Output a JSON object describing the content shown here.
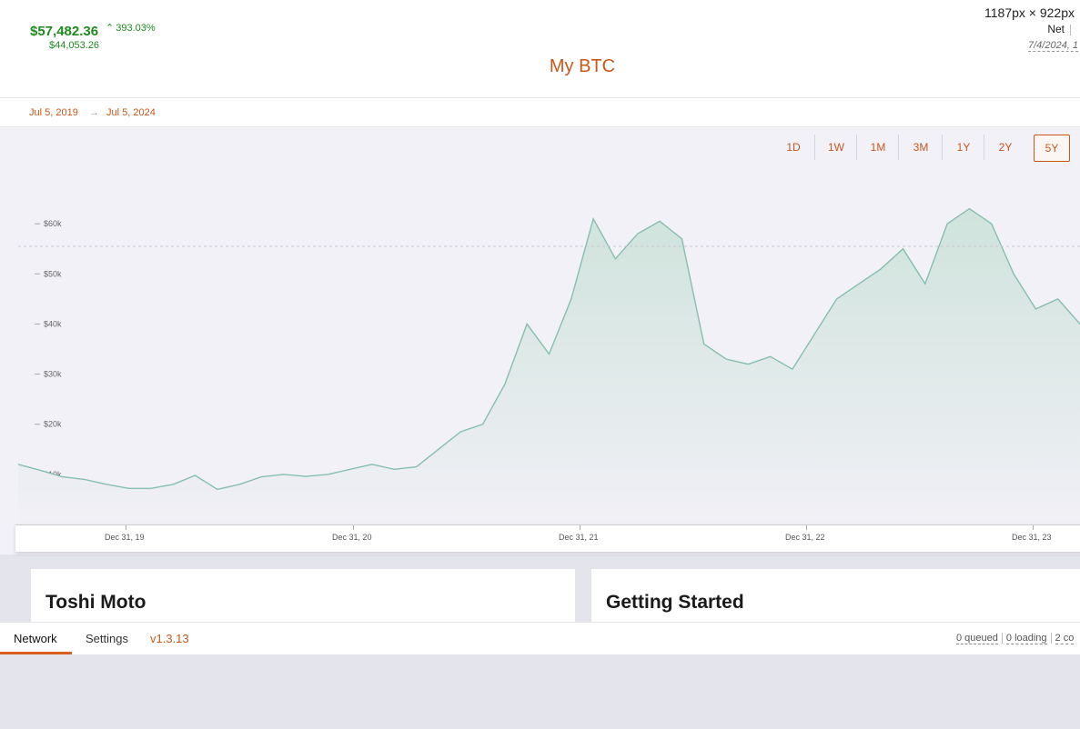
{
  "header": {
    "price": "$57,482.36",
    "change": "393.03%",
    "cost_basis": "$44,053.26",
    "title": "My BTC",
    "dimensions": "1187px × 922px",
    "net_label": "Net",
    "date": "7/4/2024, 1"
  },
  "range": {
    "start": "Jul 5, 2019",
    "end": "Jul 5, 2024"
  },
  "periods": [
    "1D",
    "1W",
    "1M",
    "3M",
    "1Y",
    "2Y",
    "5Y"
  ],
  "active_period": "5Y",
  "chart_data": {
    "type": "area",
    "y_ticks": [
      "$60k",
      "$50k",
      "$40k",
      "$30k",
      "$20k",
      "$10k"
    ],
    "x_ticks": [
      "Dec 31, 19",
      "Dec 31, 20",
      "Dec 31, 21",
      "Dec 31, 22",
      "Dec 31, 23"
    ],
    "ylim": [
      0,
      72000
    ],
    "reference_line": 55500,
    "colors": {
      "line": "#86bfae",
      "fill_top": "#cfe3dc",
      "fill_bottom": "#f1f0f6",
      "ref": "#c9c5d2"
    },
    "series": [
      {
        "x": [
          0.0,
          0.1,
          0.2,
          0.3,
          0.4,
          0.5,
          0.6,
          0.7,
          0.8,
          0.9,
          1.0,
          1.1,
          1.2,
          1.3,
          1.4,
          1.5,
          1.6,
          1.7,
          1.8,
          1.9,
          2.0,
          2.1,
          2.2,
          2.3,
          2.4,
          2.5,
          2.6,
          2.7,
          2.8,
          2.9,
          3.0,
          3.1,
          3.2,
          3.3,
          3.4,
          3.5,
          3.6,
          3.7,
          3.8,
          3.9,
          4.0,
          4.1,
          4.2,
          4.3,
          4.4,
          4.5,
          4.6,
          4.7,
          4.8
        ],
        "values": [
          12000,
          10800,
          9500,
          9000,
          8000,
          7200,
          7200,
          8000,
          9800,
          7000,
          8000,
          9500,
          10000,
          9600,
          10000,
          11000,
          12000,
          11000,
          11500,
          15000,
          18500,
          20000,
          28000,
          40000,
          34000,
          45000,
          61000,
          53000,
          58000,
          60500,
          57000,
          36000,
          33000,
          32000,
          33500,
          31000,
          38000,
          45000,
          48000,
          51000,
          55000,
          48000,
          60000,
          63000,
          60000,
          50000,
          43000,
          45000,
          40000
        ]
      }
    ]
  },
  "cards": [
    {
      "title": "Toshi Moto"
    },
    {
      "title": "Getting Started"
    }
  ],
  "bottom": {
    "tabs": [
      "Network",
      "Settings"
    ],
    "version": "v1.3.13",
    "queued": "0 queued",
    "loading": "0 loading",
    "other": "2 co"
  }
}
